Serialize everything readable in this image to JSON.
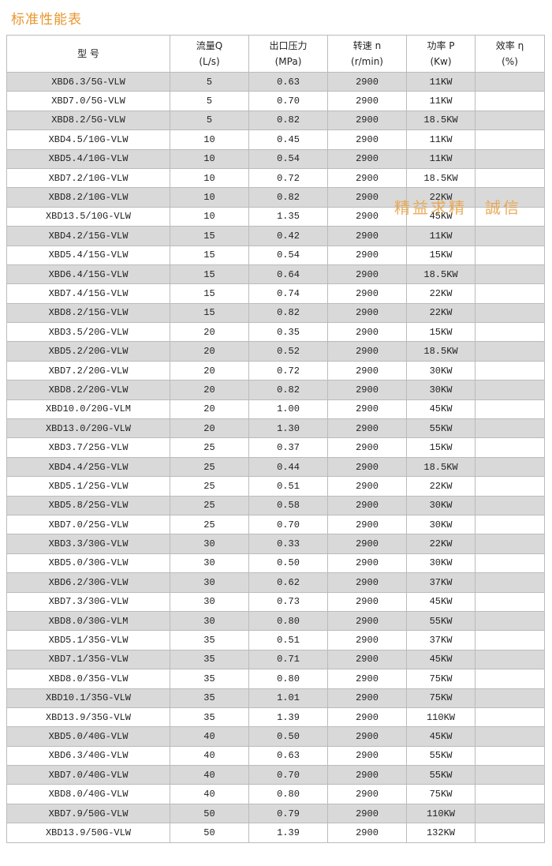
{
  "title": "标准性能表",
  "table": {
    "header": [
      [
        "型 号"
      ],
      [
        "流量Q",
        "(L/s)"
      ],
      [
        "出口压力",
        "(MPa)"
      ],
      [
        "转速 n",
        "(r/min)"
      ],
      [
        "功率 P",
        "(Kw)"
      ],
      [
        "效率 η",
        "(%)"
      ]
    ],
    "rows": [
      [
        "XBD6.3/5G-VLW",
        "5",
        "0.63",
        "2900",
        "11KW"
      ],
      [
        "XBD7.0/5G-VLW",
        "5",
        "0.70",
        "2900",
        "11KW"
      ],
      [
        "XBD8.2/5G-VLW",
        "5",
        "0.82",
        "2900",
        "18.5KW"
      ],
      [
        "XBD4.5/10G-VLW",
        "10",
        "0.45",
        "2900",
        "11KW"
      ],
      [
        "XBD5.4/10G-VLW",
        "10",
        "0.54",
        "2900",
        "11KW"
      ],
      [
        "XBD7.2/10G-VLW",
        "10",
        "0.72",
        "2900",
        "18.5KW"
      ],
      [
        "XBD8.2/10G-VLW",
        "10",
        "0.82",
        "2900",
        "22KW"
      ],
      [
        "XBD13.5/10G-VLW",
        "10",
        "1.35",
        "2900",
        "45KW"
      ],
      [
        "XBD4.2/15G-VLW",
        "15",
        "0.42",
        "2900",
        "11KW"
      ],
      [
        "XBD5.4/15G-VLW",
        "15",
        "0.54",
        "2900",
        "15KW"
      ],
      [
        "XBD6.4/15G-VLW",
        "15",
        "0.64",
        "2900",
        "18.5KW"
      ],
      [
        "XBD7.4/15G-VLW",
        "15",
        "0.74",
        "2900",
        "22KW"
      ],
      [
        "XBD8.2/15G-VLW",
        "15",
        "0.82",
        "2900",
        "22KW"
      ],
      [
        "XBD3.5/20G-VLW",
        "20",
        "0.35",
        "2900",
        "15KW"
      ],
      [
        "XBD5.2/20G-VLW",
        "20",
        "0.52",
        "2900",
        "18.5KW"
      ],
      [
        "XBD7.2/20G-VLW",
        "20",
        "0.72",
        "2900",
        "30KW"
      ],
      [
        "XBD8.2/20G-VLW",
        "20",
        "0.82",
        "2900",
        "30KW"
      ],
      [
        "XBD10.0/20G-VLM",
        "20",
        "1.00",
        "2900",
        "45KW"
      ],
      [
        "XBD13.0/20G-VLW",
        "20",
        "1.30",
        "2900",
        "55KW"
      ],
      [
        "XBD3.7/25G-VLW",
        "25",
        "0.37",
        "2900",
        "15KW"
      ],
      [
        "XBD4.4/25G-VLW",
        "25",
        "0.44",
        "2900",
        "18.5KW"
      ],
      [
        "XBD5.1/25G-VLW",
        "25",
        "0.51",
        "2900",
        "22KW"
      ],
      [
        "XBD5.8/25G-VLW",
        "25",
        "0.58",
        "2900",
        "30KW"
      ],
      [
        "XBD7.0/25G-VLW",
        "25",
        "0.70",
        "2900",
        "30KW"
      ],
      [
        "XBD3.3/30G-VLW",
        "30",
        "0.33",
        "2900",
        "22KW"
      ],
      [
        "XBD5.0/30G-VLW",
        "30",
        "0.50",
        "2900",
        "30KW"
      ],
      [
        "XBD6.2/30G-VLW",
        "30",
        "0.62",
        "2900",
        "37KW"
      ],
      [
        "XBD7.3/30G-VLW",
        "30",
        "0.73",
        "2900",
        "45KW"
      ],
      [
        "XBD8.0/30G-VLM",
        "30",
        "0.80",
        "2900",
        "55KW"
      ],
      [
        "XBD5.1/35G-VLW",
        "35",
        "0.51",
        "2900",
        "37KW"
      ],
      [
        "XBD7.1/35G-VLW",
        "35",
        "0.71",
        "2900",
        "45KW"
      ],
      [
        "XBD8.0/35G-VLW",
        "35",
        "0.80",
        "2900",
        "75KW"
      ],
      [
        "XBD10.1/35G-VLW",
        "35",
        "1.01",
        "2900",
        "75KW"
      ],
      [
        "XBD13.9/35G-VLW",
        "35",
        "1.39",
        "2900",
        "110KW"
      ],
      [
        "XBD5.0/40G-VLW",
        "40",
        "0.50",
        "2900",
        "45KW"
      ],
      [
        "XBD6.3/40G-VLW",
        "40",
        "0.63",
        "2900",
        "55KW"
      ],
      [
        "XBD7.0/40G-VLW",
        "40",
        "0.70",
        "2900",
        "55KW"
      ],
      [
        "XBD8.0/40G-VLW",
        "40",
        "0.80",
        "2900",
        "75KW"
      ],
      [
        "XBD7.9/50G-VLW",
        "50",
        "0.79",
        "2900",
        "110KW"
      ],
      [
        "XBD13.9/50G-VLW",
        "50",
        "1.39",
        "2900",
        "132KW"
      ]
    ]
  },
  "watermark": "精益求精　誠信"
}
